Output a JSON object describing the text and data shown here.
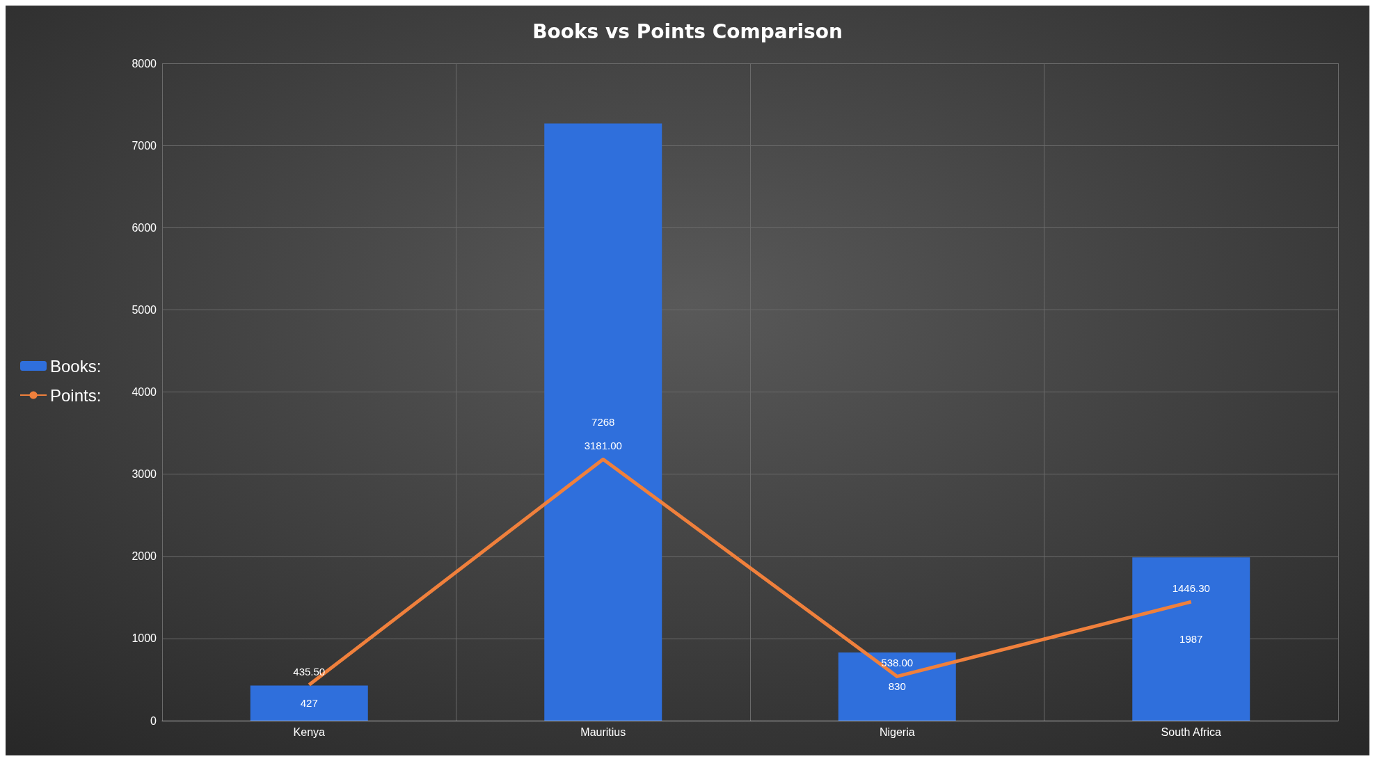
{
  "chart_data": {
    "type": "bar",
    "title": "Books vs Points Comparison",
    "categories": [
      "Kenya",
      "Mauritius",
      "Nigeria",
      "South Africa"
    ],
    "series": [
      {
        "name": "Books:",
        "color": "#2f6fdc",
        "values": [
          427,
          7268,
          830,
          1987
        ],
        "value_labels": [
          "427",
          "7268",
          "830",
          "1987"
        ]
      },
      {
        "name": "Points:",
        "type": "line",
        "color": "#f0803c",
        "values": [
          435.5,
          3181.0,
          538.0,
          1446.3
        ],
        "value_labels": [
          "435.50",
          "3181.00",
          "538.00",
          "1446.30"
        ]
      }
    ],
    "ylim": [
      0,
      8000
    ],
    "yticks": [
      0,
      1000,
      2000,
      3000,
      4000,
      5000,
      6000,
      7000,
      8000
    ],
    "grid": true,
    "legend": "left",
    "marker": "none"
  }
}
